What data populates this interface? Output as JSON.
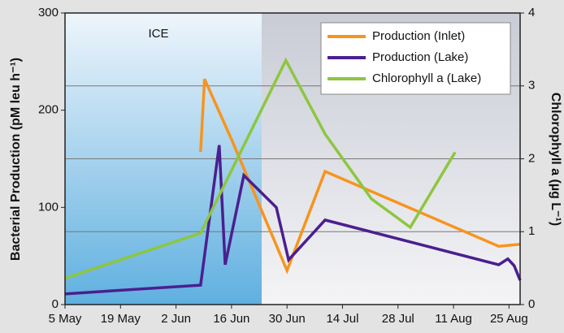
{
  "chart_data": {
    "type": "line",
    "annotations": [
      "ICE"
    ],
    "y_label": "Bacterial Production (pM leu h⁻¹)",
    "y2_label": "Chlorophyll a (µg L⁻¹)",
    "xlim": [
      0,
      114.8
    ],
    "xticks": [
      {
        "value": 0,
        "label": "5 May"
      },
      {
        "value": 14,
        "label": "19 May"
      },
      {
        "value": 28,
        "label": "2 Jun"
      },
      {
        "value": 42,
        "label": "16 Jun"
      },
      {
        "value": 56,
        "label": "30 Jun"
      },
      {
        "value": 70,
        "label": "14 Jul"
      },
      {
        "value": 84,
        "label": "28 Jul"
      },
      {
        "value": 98,
        "label": "11 Aug"
      },
      {
        "value": 112,
        "label": "25 Aug"
      }
    ],
    "ylim": [
      0,
      300
    ],
    "yticks": [
      0,
      100,
      200,
      300
    ],
    "y2lim": [
      0,
      4
    ],
    "y2ticks": [
      0,
      1,
      2,
      3,
      4
    ],
    "grid": true,
    "legend": "upper right",
    "series": [
      {
        "name": "Production (Inlet)",
        "color": "#f7941d",
        "x": [
          34.2,
          35.2,
          42,
          56,
          65.6,
          109.4,
          114.8
        ],
        "values": [
          157,
          232,
          170,
          35,
          137,
          60,
          62
        ]
      },
      {
        "name": "Production (Lake)",
        "color": "#4b1f8f",
        "x": [
          0,
          34.2,
          38.9,
          40.4,
          45.1,
          53.3,
          56.4,
          65.6,
          109.4,
          111.7,
          113.3,
          114.8
        ],
        "values": [
          11,
          20,
          164,
          41,
          133,
          100,
          46,
          87,
          41,
          47,
          40,
          25
        ]
      },
      {
        "name": "Chlorophyll a (Lake)",
        "color": "#8dc63f",
        "axis": "y2",
        "x": [
          0,
          34.2,
          55.7,
          65.6,
          77.3,
          87.1,
          98.4
        ],
        "values": [
          0.36,
          0.98,
          3.35,
          2.34,
          1.45,
          1.06,
          2.09
        ]
      }
    ]
  }
}
